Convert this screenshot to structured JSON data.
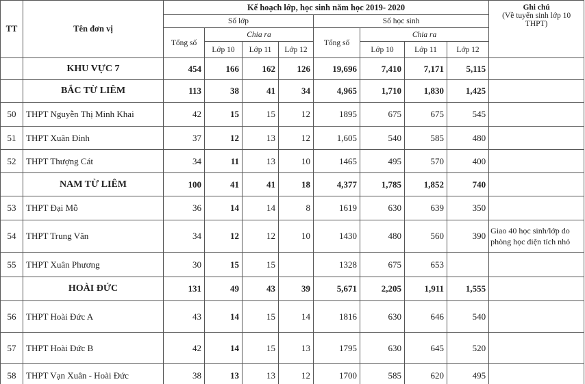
{
  "header": {
    "group_title": "Kế hoạch lớp, học sinh năm học 2019- 2020",
    "tt": "TT",
    "unit": "Tên đơn vị",
    "classes": "Số lớp",
    "students": "Số học sinh",
    "total": "Tổng số",
    "split": "Chia ra",
    "grade10": "Lớp 10",
    "grade11": "Lớp 11",
    "grade12": "Lớp 12",
    "note_title": "Ghi chú",
    "note_subtitle": "(Về tuyển sinh lớp 10 THPT)"
  },
  "table": {
    "rows": [
      {
        "name": "KHU VỰC 7",
        "group": true,
        "cells": [
          "454",
          "166",
          "162",
          "126",
          "19,696",
          "7,410",
          "7,171",
          "5,115"
        ],
        "note": null
      },
      {
        "name": "BẮC TỪ LIÊM",
        "group": true,
        "cells": [
          "113",
          "38",
          "41",
          "34",
          "4,965",
          "1,710",
          "1,830",
          "1,425"
        ],
        "note": null
      },
      {
        "tt": "50",
        "name": "THPT Nguyễn Thị Minh Khai",
        "group": false,
        "cells": [
          "42",
          "15",
          "15",
          "12",
          "1895",
          "675",
          "675",
          "545"
        ],
        "note": null
      },
      {
        "tt": "51",
        "name": "THPT Xuân Đỉnh",
        "group": false,
        "cells": [
          "37",
          "12",
          "13",
          "12",
          "1,605",
          "540",
          "585",
          "480"
        ],
        "note": null
      },
      {
        "tt": "52",
        "name": "THPT Thượng Cát",
        "group": false,
        "cells": [
          "34",
          "11",
          "13",
          "10",
          "1465",
          "495",
          "570",
          "400"
        ],
        "note": null
      },
      {
        "name": "NAM TỪ LIÊM",
        "group": true,
        "cells": [
          "100",
          "41",
          "41",
          "18",
          "4,377",
          "1,785",
          "1,852",
          "740"
        ],
        "note": null
      },
      {
        "tt": "53",
        "name": "THPT Đại Mỗ",
        "group": false,
        "cells": [
          "36",
          "14",
          "14",
          "8",
          "1619",
          "630",
          "639",
          "350"
        ],
        "note": null
      },
      {
        "tt": "54",
        "name": "THPT Trung Văn",
        "group": false,
        "cells": [
          "34",
          "12",
          "12",
          "10",
          "1430",
          "480",
          "560",
          "390"
        ],
        "note": "Giao 40 học sinh/lớp do phòng học diện tích nhỏ"
      },
      {
        "tt": "55",
        "name": "THPT Xuân Phương",
        "group": false,
        "cells": [
          "30",
          "15",
          "15",
          null,
          "1328",
          "675",
          "653",
          null
        ],
        "note": null
      },
      {
        "name": "HOÀI ĐỨC",
        "group": true,
        "cells": [
          "131",
          "49",
          "43",
          "39",
          "5,671",
          "2,205",
          "1,911",
          "1,555"
        ],
        "note": null
      },
      {
        "tt": "56",
        "name": "THPT Hoài Đức A",
        "group": false,
        "cells": [
          "43",
          "14",
          "15",
          "14",
          "1816",
          "630",
          "646",
          "540"
        ],
        "note": null
      },
      {
        "tt": "57",
        "name": "THPT Hoài Đức B",
        "group": false,
        "cells": [
          "42",
          "14",
          "15",
          "13",
          "1795",
          "630",
          "645",
          "520"
        ],
        "note": null
      },
      {
        "tt": "58",
        "name": "THPT Vạn Xuân - Hoài Đức",
        "group": false,
        "cells": [
          "38",
          "13",
          "13",
          "12",
          "1700",
          "585",
          "620",
          "495"
        ],
        "note": null
      }
    ]
  }
}
